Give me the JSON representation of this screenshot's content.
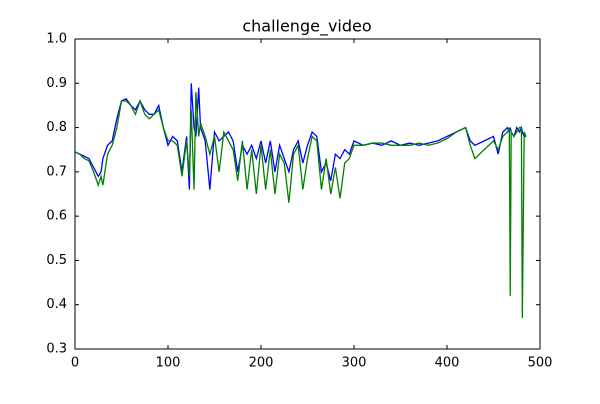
{
  "chart_data": {
    "type": "line",
    "title": "challenge_video",
    "x": [
      0,
      5,
      10,
      15,
      20,
      25,
      28,
      30,
      35,
      40,
      45,
      50,
      55,
      60,
      65,
      70,
      75,
      80,
      85,
      90,
      95,
      100,
      105,
      110,
      115,
      120,
      123,
      125,
      128,
      130,
      133,
      135,
      140,
      145,
      150,
      155,
      160,
      165,
      170,
      175,
      180,
      185,
      190,
      195,
      200,
      205,
      210,
      215,
      220,
      225,
      230,
      235,
      240,
      245,
      250,
      255,
      260,
      265,
      270,
      275,
      280,
      285,
      290,
      295,
      300,
      310,
      320,
      330,
      340,
      350,
      360,
      370,
      380,
      390,
      400,
      410,
      420,
      425,
      430,
      440,
      450,
      455,
      460,
      465,
      467,
      468,
      469,
      472,
      475,
      478,
      480,
      481,
      483,
      485
    ],
    "series": [
      {
        "color": "#0000ff",
        "values": [
          0.745,
          0.74,
          0.735,
          0.73,
          0.71,
          0.69,
          0.7,
          0.73,
          0.76,
          0.77,
          0.82,
          0.86,
          0.865,
          0.85,
          0.84,
          0.86,
          0.84,
          0.83,
          0.83,
          0.85,
          0.8,
          0.76,
          0.78,
          0.77,
          0.7,
          0.78,
          0.66,
          0.9,
          0.8,
          0.78,
          0.89,
          0.8,
          0.77,
          0.66,
          0.79,
          0.77,
          0.78,
          0.79,
          0.77,
          0.7,
          0.76,
          0.74,
          0.76,
          0.73,
          0.77,
          0.72,
          0.77,
          0.7,
          0.76,
          0.73,
          0.7,
          0.75,
          0.77,
          0.72,
          0.76,
          0.79,
          0.78,
          0.7,
          0.72,
          0.68,
          0.74,
          0.73,
          0.75,
          0.74,
          0.77,
          0.76,
          0.765,
          0.76,
          0.77,
          0.76,
          0.765,
          0.76,
          0.765,
          0.77,
          0.78,
          0.79,
          0.8,
          0.77,
          0.76,
          0.77,
          0.78,
          0.74,
          0.79,
          0.8,
          0.79,
          0.8,
          0.79,
          0.78,
          0.8,
          0.79,
          0.8,
          0.79,
          0.78,
          0.78
        ]
      },
      {
        "color": "#008000",
        "values": [
          0.745,
          0.74,
          0.73,
          0.725,
          0.7,
          0.67,
          0.69,
          0.67,
          0.74,
          0.76,
          0.8,
          0.86,
          0.86,
          0.85,
          0.83,
          0.86,
          0.83,
          0.82,
          0.83,
          0.84,
          0.8,
          0.77,
          0.77,
          0.76,
          0.69,
          0.77,
          0.69,
          0.84,
          0.66,
          0.88,
          0.78,
          0.81,
          0.78,
          0.74,
          0.78,
          0.7,
          0.79,
          0.77,
          0.75,
          0.68,
          0.77,
          0.66,
          0.75,
          0.65,
          0.76,
          0.66,
          0.75,
          0.65,
          0.74,
          0.72,
          0.63,
          0.74,
          0.76,
          0.66,
          0.73,
          0.78,
          0.77,
          0.66,
          0.73,
          0.65,
          0.71,
          0.64,
          0.72,
          0.73,
          0.76,
          0.76,
          0.765,
          0.765,
          0.76,
          0.76,
          0.76,
          0.765,
          0.76,
          0.765,
          0.775,
          0.79,
          0.8,
          0.76,
          0.73,
          0.75,
          0.77,
          0.75,
          0.78,
          0.79,
          0.8,
          0.42,
          0.79,
          0.78,
          0.79,
          0.8,
          0.8,
          0.37,
          0.79,
          0.78
        ]
      }
    ],
    "xlim": [
      0,
      500
    ],
    "xticks": [
      0,
      100,
      200,
      300,
      400,
      500
    ],
    "ylim": [
      0.3,
      1
    ],
    "yticks": [
      0.3,
      0.4,
      0.5,
      0.6,
      0.7,
      0.8,
      0.9,
      {
        "value": 1,
        "label": "1.0"
      }
    ]
  }
}
